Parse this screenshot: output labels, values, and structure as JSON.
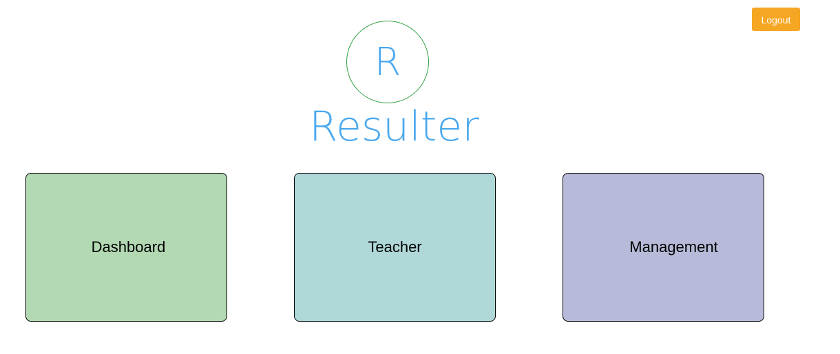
{
  "header": {
    "logout_label": "Logout"
  },
  "brand": {
    "logo_letter": "R",
    "name": "Resulter"
  },
  "cards": [
    {
      "label": "Dashboard"
    },
    {
      "label": "Teacher"
    },
    {
      "label": "Management"
    }
  ],
  "colors": {
    "logout_button": "#f5a623",
    "brand_text": "#4aa8ee",
    "logo_ring": "#2ea043",
    "dashboard_card": "#b3d9b3",
    "teacher_card": "#b0d8d8",
    "management_card": "#b7bbd9"
  }
}
